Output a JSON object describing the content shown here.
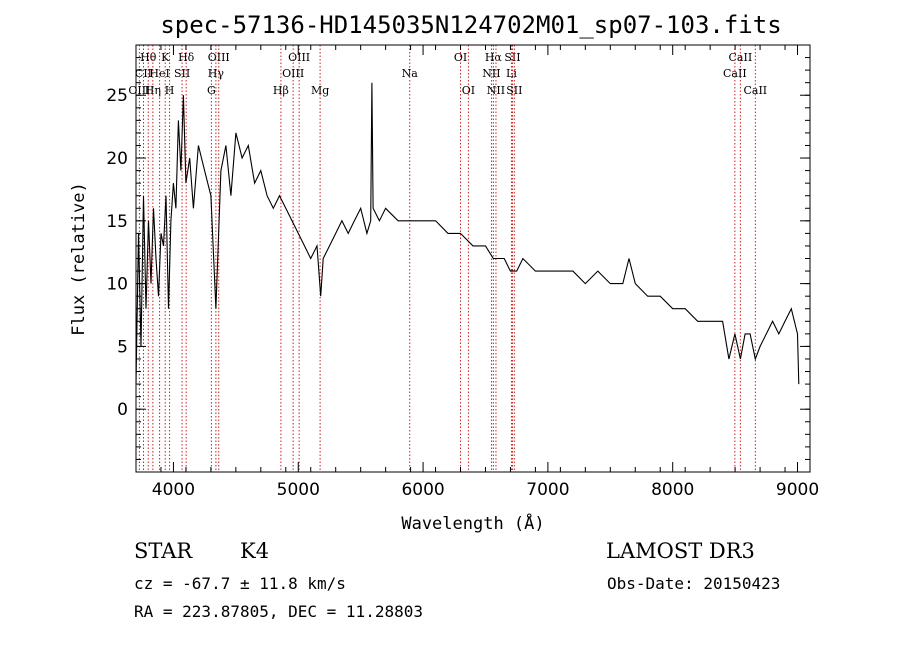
{
  "chart_data": {
    "type": "line",
    "title": "spec-57136-HD145035N124702M01_sp07-103.fits",
    "xlabel": "Wavelength (Å)",
    "ylabel": "Flux (relative)",
    "xlim": [
      3700,
      9100
    ],
    "ylim": [
      -5,
      29
    ],
    "xticks": [
      4000,
      5000,
      6000,
      7000,
      8000,
      9000
    ],
    "yticks": [
      0,
      5,
      10,
      15,
      20,
      25
    ],
    "series": [
      {
        "name": "spectrum",
        "x": [
          3700,
          3720,
          3740,
          3760,
          3780,
          3800,
          3820,
          3840,
          3860,
          3880,
          3900,
          3920,
          3940,
          3960,
          3980,
          4000,
          4020,
          4040,
          4060,
          4080,
          4100,
          4130,
          4160,
          4200,
          4250,
          4300,
          4340,
          4380,
          4420,
          4460,
          4500,
          4550,
          4600,
          4650,
          4700,
          4750,
          4800,
          4850,
          4900,
          4950,
          5000,
          5050,
          5100,
          5150,
          5180,
          5200,
          5250,
          5300,
          5350,
          5400,
          5450,
          5500,
          5550,
          5580,
          5590,
          5600,
          5650,
          5700,
          5800,
          5890,
          5950,
          6000,
          6100,
          6200,
          6300,
          6400,
          6500,
          6563,
          6600,
          6650,
          6700,
          6750,
          6800,
          6900,
          7000,
          7100,
          7200,
          7300,
          7400,
          7500,
          7600,
          7650,
          7700,
          7800,
          7900,
          8000,
          8100,
          8200,
          8300,
          8400,
          8450,
          8498,
          8542,
          8580,
          8620,
          8662,
          8700,
          8750,
          8800,
          8850,
          8900,
          8950,
          9000,
          9010
        ],
        "y": [
          2,
          14,
          5,
          17,
          8,
          15,
          10,
          16,
          12,
          9,
          14,
          13,
          17,
          8,
          15,
          18,
          16,
          23,
          19,
          25,
          18,
          20,
          16,
          21,
          19,
          17,
          8,
          19,
          21,
          17,
          22,
          20,
          21,
          18,
          19,
          17,
          16,
          17,
          16,
          15,
          14,
          13,
          12,
          13,
          9,
          12,
          13,
          14,
          15,
          14,
          15,
          16,
          14,
          15,
          26,
          16,
          15,
          16,
          15,
          15,
          15,
          15,
          15,
          14,
          14,
          13,
          13,
          12,
          12,
          12,
          11,
          11,
          12,
          11,
          11,
          11,
          11,
          10,
          11,
          10,
          10,
          12,
          10,
          9,
          9,
          8,
          8,
          7,
          7,
          7,
          4,
          6,
          4,
          6,
          6,
          4,
          5,
          6,
          7,
          6,
          7,
          8,
          6,
          2
        ]
      }
    ],
    "spectral_lines": [
      {
        "label": "Hθ",
        "x": 3798,
        "row": 0
      },
      {
        "label": "CII",
        "x": 3760,
        "row": 1
      },
      {
        "label": "OIII",
        "x": 3727,
        "row": 2
      },
      {
        "label": "HeI",
        "x": 3889,
        "row": 1
      },
      {
        "label": "Hη",
        "x": 3835,
        "row": 2
      },
      {
        "label": "K",
        "x": 3934,
        "row": 0
      },
      {
        "label": "SII",
        "x": 4069,
        "row": 1
      },
      {
        "label": "H",
        "x": 3969,
        "row": 2
      },
      {
        "label": "Hδ",
        "x": 4102,
        "row": 0
      },
      {
        "label": "OIII",
        "x": 4363,
        "row": 0
      },
      {
        "label": "Hγ",
        "x": 4340,
        "row": 1
      },
      {
        "label": "G",
        "x": 4304,
        "row": 2
      },
      {
        "label": "Hβ",
        "x": 4861,
        "row": 2
      },
      {
        "label": "OIII",
        "x": 5007,
        "row": 0
      },
      {
        "label": "OIII",
        "x": 4959,
        "row": 1
      },
      {
        "label": "Mg",
        "x": 5175,
        "row": 2
      },
      {
        "label": "Na",
        "x": 5893,
        "row": 1
      },
      {
        "label": "OI",
        "x": 6300,
        "row": 0
      },
      {
        "label": "OI",
        "x": 6363,
        "row": 2
      },
      {
        "label": "Hα",
        "x": 6563,
        "row": 0
      },
      {
        "label": "NII",
        "x": 6548,
        "row": 1
      },
      {
        "label": "NII",
        "x": 6584,
        "row": 2
      },
      {
        "label": "SII",
        "x": 6716,
        "row": 0
      },
      {
        "label": "Li",
        "x": 6708,
        "row": 1
      },
      {
        "label": "SII",
        "x": 6731,
        "row": 2
      },
      {
        "label": "CaII",
        "x": 8542,
        "row": 0
      },
      {
        "label": "CaII",
        "x": 8498,
        "row": 1
      },
      {
        "label": "CaII",
        "x": 8662,
        "row": 2
      }
    ]
  },
  "info": {
    "object_class": "STAR",
    "subclass": "K4",
    "redshift_text": "cz = -67.7 ± 11.8 km/s",
    "coords_text": "RA = 223.87805, DEC =  11.28803",
    "survey": "LAMOST DR3",
    "obs_date_text": "Obs-Date: 20150423"
  }
}
